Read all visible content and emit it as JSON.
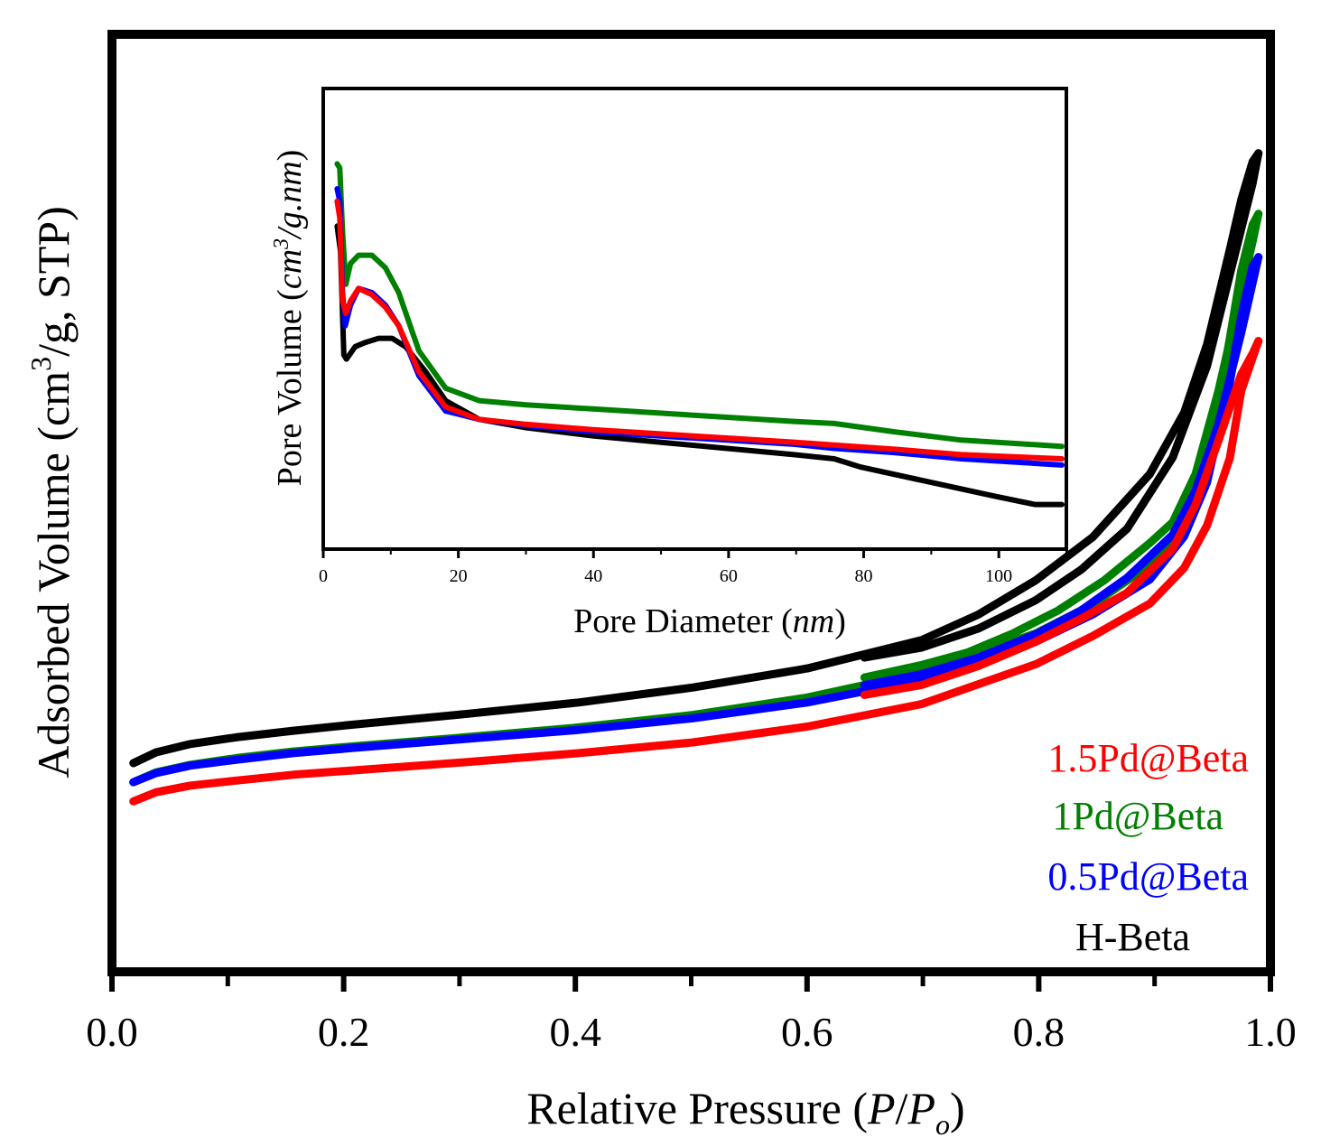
{
  "chart_data": [
    {
      "type": "line",
      "role": "main",
      "xlabel": "Relative Pressure (P/Po)",
      "ylabel": "Adsorbed Volume (cm3/g, STP)",
      "xlabel_parts": {
        "text": "Relative Pressure (",
        "italic1": "P",
        "slash": "/",
        "italic2": "P",
        "sub": "o",
        "close": ")"
      },
      "ylabel_parts": {
        "text": "Adsorbed Volume (cm",
        "sup": "3",
        "rest": "/g, STP)"
      },
      "xlim": [
        0.0,
        1.0
      ],
      "ylim": [
        0,
        100
      ],
      "y_ticks_labeled": false,
      "x_tick_labels": [
        "0.0",
        "0.2",
        "0.4",
        "0.6",
        "0.8",
        "1.0"
      ],
      "x_ticks": [
        0.0,
        0.2,
        0.4,
        0.6,
        0.8,
        1.0
      ],
      "legend_position": "bottom-right",
      "legend": [
        {
          "label": "1.5Pd@Beta",
          "color": "#ff0000"
        },
        {
          "label": "1Pd@Beta",
          "color": "#008000"
        },
        {
          "label": "0.5Pd@Beta",
          "color": "#0000ff"
        },
        {
          "label": "H-Beta",
          "color": "#000000"
        }
      ],
      "series": [
        {
          "name": "H-Beta",
          "color": "#000000",
          "adsorption": [
            [
              0.01,
              21.2
            ],
            [
              0.03,
              22.5
            ],
            [
              0.06,
              23.5
            ],
            [
              0.1,
              24.3
            ],
            [
              0.15,
              25.1
            ],
            [
              0.2,
              25.8
            ],
            [
              0.3,
              27.1
            ],
            [
              0.4,
              28.5
            ],
            [
              0.5,
              30.3
            ],
            [
              0.6,
              32.6
            ],
            [
              0.7,
              36.0
            ],
            [
              0.75,
              39.1
            ],
            [
              0.8,
              43.2
            ],
            [
              0.85,
              48.4
            ],
            [
              0.9,
              56.0
            ],
            [
              0.93,
              63.4
            ],
            [
              0.95,
              71.6
            ],
            [
              0.97,
              83.0
            ],
            [
              0.98,
              89.0
            ],
            [
              0.99,
              93.6
            ],
            [
              0.995,
              94.6
            ]
          ],
          "desorption": [
            [
              0.995,
              94.6
            ],
            [
              0.99,
              91.0
            ],
            [
              0.97,
              80.0
            ],
            [
              0.95,
              69.0
            ],
            [
              0.92,
              58.0
            ],
            [
              0.88,
              49.4
            ],
            [
              0.84,
              44.5
            ],
            [
              0.8,
              40.8
            ],
            [
              0.75,
              37.4
            ],
            [
              0.7,
              35.1
            ],
            [
              0.65,
              33.9
            ]
          ]
        },
        {
          "name": "1Pd@Beta",
          "color": "#008000",
          "adsorption": [
            [
              0.01,
              18.9
            ],
            [
              0.03,
              20.1
            ],
            [
              0.06,
              21.0
            ],
            [
              0.1,
              21.8
            ],
            [
              0.15,
              22.6
            ],
            [
              0.2,
              23.2
            ],
            [
              0.3,
              24.3
            ],
            [
              0.4,
              25.5
            ],
            [
              0.5,
              27.0
            ],
            [
              0.6,
              29.1
            ],
            [
              0.7,
              32.1
            ],
            [
              0.8,
              36.8
            ],
            [
              0.85,
              40.3
            ],
            [
              0.9,
              45.1
            ],
            [
              0.93,
              49.7
            ],
            [
              0.95,
              56.6
            ],
            [
              0.97,
              72.3
            ],
            [
              0.98,
              80.5
            ],
            [
              0.99,
              86.0
            ],
            [
              0.995,
              87.3
            ]
          ],
          "desorption": [
            [
              0.995,
              87.3
            ],
            [
              0.99,
              84.0
            ],
            [
              0.98,
              78.0
            ],
            [
              0.96,
              66.0
            ],
            [
              0.94,
              56.0
            ],
            [
              0.92,
              50.2
            ],
            [
              0.9,
              47.7
            ],
            [
              0.86,
              43.2
            ],
            [
              0.82,
              39.6
            ],
            [
              0.78,
              36.8
            ],
            [
              0.74,
              34.5
            ],
            [
              0.7,
              33.0
            ],
            [
              0.65,
              31.5
            ]
          ]
        },
        {
          "name": "0.5Pd@Beta",
          "color": "#0000ff",
          "adsorption": [
            [
              0.01,
              18.9
            ],
            [
              0.03,
              20.0
            ],
            [
              0.06,
              20.9
            ],
            [
              0.1,
              21.6
            ],
            [
              0.15,
              22.4
            ],
            [
              0.2,
              23.0
            ],
            [
              0.3,
              24.1
            ],
            [
              0.4,
              25.2
            ],
            [
              0.5,
              26.6
            ],
            [
              0.6,
              28.5
            ],
            [
              0.7,
              31.2
            ],
            [
              0.8,
              35.8
            ],
            [
              0.85,
              39.1
            ],
            [
              0.9,
              43.3
            ],
            [
              0.93,
              48.5
            ],
            [
              0.95,
              55.0
            ],
            [
              0.97,
              67.0
            ],
            [
              0.98,
              75.0
            ],
            [
              0.99,
              81.0
            ],
            [
              0.995,
              82.1
            ]
          ],
          "desorption": [
            [
              0.995,
              82.1
            ],
            [
              0.99,
              79.0
            ],
            [
              0.98,
              73.0
            ],
            [
              0.96,
              62.0
            ],
            [
              0.94,
              54.0
            ],
            [
              0.92,
              48.7
            ],
            [
              0.88,
              43.5
            ],
            [
              0.84,
              39.6
            ],
            [
              0.8,
              36.7
            ],
            [
              0.75,
              33.9
            ],
            [
              0.7,
              31.9
            ],
            [
              0.65,
              30.6
            ]
          ]
        },
        {
          "name": "1.5Pd@Beta",
          "color": "#ff0000",
          "adsorption": [
            [
              0.01,
              16.6
            ],
            [
              0.03,
              17.7
            ],
            [
              0.06,
              18.5
            ],
            [
              0.1,
              19.1
            ],
            [
              0.15,
              19.8
            ],
            [
              0.2,
              20.3
            ],
            [
              0.3,
              21.3
            ],
            [
              0.4,
              22.4
            ],
            [
              0.5,
              23.7
            ],
            [
              0.6,
              25.6
            ],
            [
              0.7,
              28.3
            ],
            [
              0.8,
              33.1
            ],
            [
              0.85,
              36.5
            ],
            [
              0.9,
              40.4
            ],
            [
              0.93,
              44.7
            ],
            [
              0.95,
              49.8
            ],
            [
              0.97,
              57.9
            ],
            [
              0.98,
              66.0
            ],
            [
              0.99,
              70.0
            ],
            [
              0.995,
              72.0
            ]
          ],
          "desorption": [
            [
              0.995,
              72.0
            ],
            [
              0.99,
              70.5
            ],
            [
              0.98,
              68.0
            ],
            [
              0.96,
              60.0
            ],
            [
              0.94,
              52.3
            ],
            [
              0.92,
              47.0
            ],
            [
              0.88,
              41.7
            ],
            [
              0.84,
              38.6
            ],
            [
              0.8,
              35.8
            ],
            [
              0.75,
              32.9
            ],
            [
              0.7,
              30.6
            ],
            [
              0.65,
              29.4
            ]
          ]
        }
      ]
    },
    {
      "type": "line",
      "role": "inset",
      "xlabel": "Pore Diameter (nm)",
      "ylabel": "Pore Volume (cm3/g.nm)",
      "xlabel_parts": {
        "text": "Pore Diameter (",
        "italic": "nm",
        "close": ")"
      },
      "ylabel_parts": {
        "text": "Pore Volume (",
        "italic1": "cm",
        "sup": "3",
        "italic2": "/g.nm",
        "close": ")"
      },
      "xlim": [
        0,
        110
      ],
      "ylim": [
        0,
        100
      ],
      "y_ticks_labeled": false,
      "x_tick_labels": [
        "0",
        "20",
        "40",
        "60",
        "80",
        "100"
      ],
      "x_ticks": [
        0,
        20,
        40,
        60,
        80,
        100
      ],
      "series": [
        {
          "name": "H-Beta",
          "color": "#000000",
          "points": [
            [
              1.8,
              76
            ],
            [
              2.3,
              70
            ],
            [
              2.8,
              45
            ],
            [
              3.2,
              44
            ],
            [
              4.5,
              47
            ],
            [
              6,
              48
            ],
            [
              8,
              49
            ],
            [
              10,
              49
            ],
            [
              12,
              47
            ],
            [
              15,
              41
            ],
            [
              18,
              34
            ],
            [
              23,
              29.5
            ],
            [
              30,
              27.5
            ],
            [
              40,
              25.5
            ],
            [
              50,
              24
            ],
            [
              60,
              22.5
            ],
            [
              70,
              21
            ],
            [
              76,
              20
            ],
            [
              80,
              18
            ],
            [
              90,
              14.5
            ],
            [
              100,
              11
            ],
            [
              106,
              9
            ],
            [
              110,
              9
            ]
          ]
        },
        {
          "name": "1Pd@Beta",
          "color": "#008000",
          "points": [
            [
              1.8,
              91
            ],
            [
              2.2,
              90
            ],
            [
              2.6,
              75
            ],
            [
              3.1,
              62
            ],
            [
              3.8,
              67
            ],
            [
              5,
              69
            ],
            [
              7,
              69
            ],
            [
              9,
              66
            ],
            [
              11,
              60
            ],
            [
              14,
              46
            ],
            [
              18,
              37
            ],
            [
              23,
              34
            ],
            [
              30,
              33
            ],
            [
              40,
              32
            ],
            [
              50,
              31
            ],
            [
              60,
              30
            ],
            [
              70,
              29
            ],
            [
              76,
              28.5
            ],
            [
              85,
              26.5
            ],
            [
              95,
              24.5
            ],
            [
              110,
              23
            ]
          ]
        },
        {
          "name": "0.5Pd@Beta",
          "color": "#0000ff",
          "points": [
            [
              1.8,
              85
            ],
            [
              2.2,
              82
            ],
            [
              2.6,
              60
            ],
            [
              3.0,
              52
            ],
            [
              3.8,
              57
            ],
            [
              5,
              61
            ],
            [
              7,
              60
            ],
            [
              9,
              57
            ],
            [
              11,
              52
            ],
            [
              14,
              40
            ],
            [
              18,
              31.5
            ],
            [
              23,
              29.5
            ],
            [
              30,
              28
            ],
            [
              40,
              26.5
            ],
            [
              50,
              25.5
            ],
            [
              60,
              24.5
            ],
            [
              70,
              23.5
            ],
            [
              76,
              22.5
            ],
            [
              85,
              21.5
            ],
            [
              95,
              20
            ],
            [
              110,
              18.5
            ]
          ]
        },
        {
          "name": "1.5Pd@Beta",
          "color": "#ff0000",
          "points": [
            [
              1.8,
              82
            ],
            [
              2.2,
              78
            ],
            [
              2.6,
              58
            ],
            [
              3.1,
              55
            ],
            [
              3.8,
              58
            ],
            [
              5,
              61
            ],
            [
              7,
              59.5
            ],
            [
              9,
              56.5
            ],
            [
              11,
              52
            ],
            [
              14,
              41
            ],
            [
              18,
              32.5
            ],
            [
              23,
              29.5
            ],
            [
              30,
              28.3
            ],
            [
              40,
              27
            ],
            [
              50,
              26
            ],
            [
              60,
              25
            ],
            [
              70,
              24
            ],
            [
              76,
              23.3
            ],
            [
              85,
              22.3
            ],
            [
              95,
              21
            ],
            [
              110,
              20
            ]
          ]
        }
      ]
    }
  ]
}
